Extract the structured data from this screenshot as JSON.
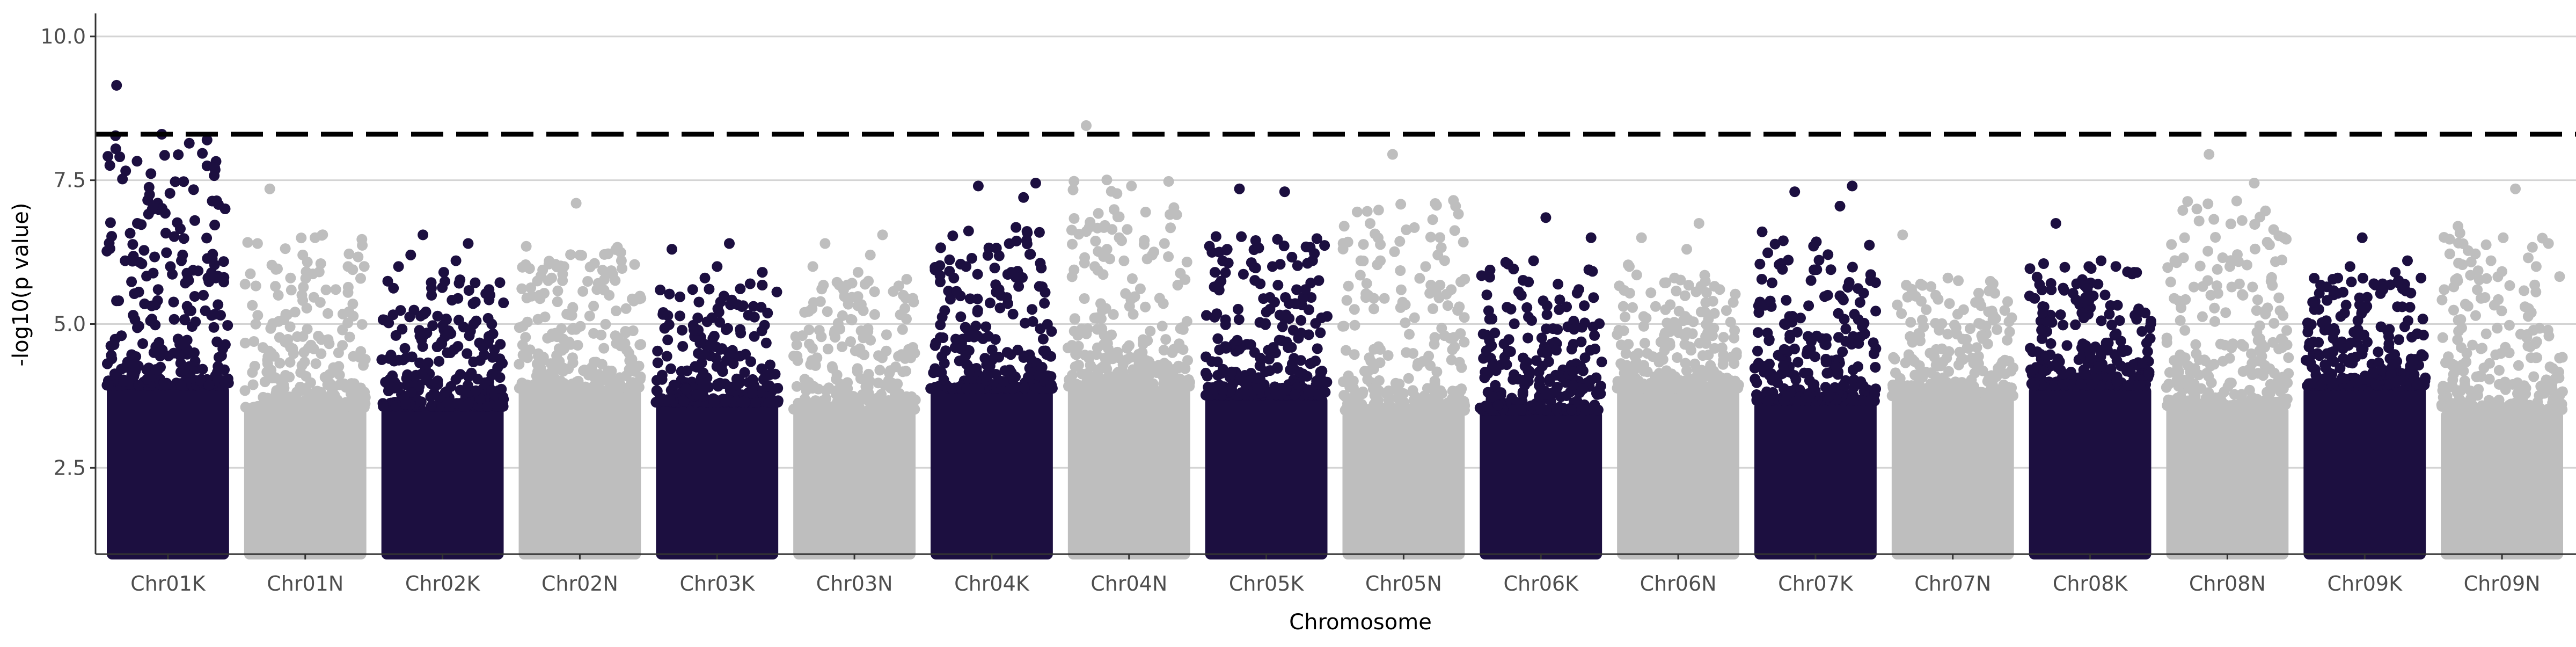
{
  "chart_data": {
    "type": "scatter",
    "subtype": "manhattan",
    "title": "",
    "xlabel": "Chromosome",
    "ylabel": "-log10(p value)",
    "ylim": [
      1,
      10.4
    ],
    "yticks": [
      2.5,
      5.0,
      7.5,
      10.0
    ],
    "ytick_labels": [
      "2.5",
      "5.0",
      "7.5",
      "10.0"
    ],
    "grid": "horizontal major",
    "legend": "none",
    "threshold": {
      "value": 8.3,
      "style": "dashed",
      "color": "#000000"
    },
    "palette": {
      "odd": "#1c0f40",
      "even": "#bebebe"
    },
    "categories": [
      "Chr01K",
      "Chr01N",
      "Chr02K",
      "Chr02N",
      "Chr03K",
      "Chr03N",
      "Chr04K",
      "Chr04N",
      "Chr05K",
      "Chr05N",
      "Chr06K",
      "Chr06N",
      "Chr07K",
      "Chr07N",
      "Chr08K",
      "Chr08N",
      "Chr09K",
      "Chr09N"
    ],
    "series": [
      {
        "chromosome": "Chr01K",
        "color": "#1c0f40",
        "max": 9.15,
        "peaks": [
          9.15,
          8.3,
          8.2,
          7.25,
          6.8,
          6.75,
          6.2,
          6.1,
          6.0,
          5.8,
          5.6,
          5.5
        ]
      },
      {
        "chromosome": "Chr01N",
        "color": "#bebebe",
        "max": 7.35,
        "peaks": [
          7.35,
          6.5,
          6.4,
          6.2,
          6.0,
          5.8,
          5.6,
          5.5
        ]
      },
      {
        "chromosome": "Chr02K",
        "color": "#1c0f40",
        "max": 6.55,
        "peaks": [
          6.55,
          6.4,
          6.2,
          6.1,
          6.0,
          5.9,
          5.6,
          5.5
        ]
      },
      {
        "chromosome": "Chr02N",
        "color": "#bebebe",
        "max": 7.1,
        "peaks": [
          7.1,
          6.1,
          6.0,
          5.9,
          5.8,
          5.6,
          5.5
        ]
      },
      {
        "chromosome": "Chr03K",
        "color": "#1c0f40",
        "max": 6.4,
        "peaks": [
          6.4,
          6.3,
          6.0,
          5.9,
          5.8,
          5.7,
          5.6
        ]
      },
      {
        "chromosome": "Chr03N",
        "color": "#bebebe",
        "max": 6.55,
        "peaks": [
          6.55,
          6.4,
          6.2,
          6.0,
          5.9,
          5.5
        ]
      },
      {
        "chromosome": "Chr04K",
        "color": "#1c0f40",
        "max": 7.45,
        "peaks": [
          7.45,
          7.4,
          7.2,
          6.0,
          5.9,
          5.8,
          5.6
        ]
      },
      {
        "chromosome": "Chr04N",
        "color": "#bebebe",
        "max": 8.45,
        "peaks": [
          8.45,
          7.4,
          6.9,
          6.5,
          6.4,
          6.3,
          6.2,
          6.0
        ]
      },
      {
        "chromosome": "Chr05K",
        "color": "#1c0f40",
        "max": 7.35,
        "peaks": [
          7.35,
          7.3,
          6.3,
          6.0,
          5.9,
          5.7,
          5.6
        ]
      },
      {
        "chromosome": "Chr05N",
        "color": "#bebebe",
        "max": 7.95,
        "peaks": [
          7.95,
          6.2,
          6.1,
          6.0,
          5.5
        ]
      },
      {
        "chromosome": "Chr06K",
        "color": "#1c0f40",
        "max": 6.85,
        "peaks": [
          6.85,
          6.5,
          6.1,
          5.6,
          5.5,
          5.3
        ]
      },
      {
        "chromosome": "Chr06N",
        "color": "#bebebe",
        "max": 6.75,
        "peaks": [
          6.75,
          6.5,
          6.3,
          6.0,
          5.8,
          5.6
        ]
      },
      {
        "chromosome": "Chr07K",
        "color": "#1c0f40",
        "max": 7.4,
        "peaks": [
          7.4,
          7.3,
          7.05,
          5.95,
          5.5,
          5.4
        ]
      },
      {
        "chromosome": "Chr07N",
        "color": "#bebebe",
        "max": 6.55,
        "peaks": [
          6.55,
          5.8,
          5.7,
          5.5
        ]
      },
      {
        "chromosome": "Chr08K",
        "color": "#1c0f40",
        "max": 6.75,
        "peaks": [
          6.75,
          6.1,
          6.05,
          6.0,
          5.9,
          5.7
        ]
      },
      {
        "chromosome": "Chr08N",
        "color": "#bebebe",
        "max": 7.95,
        "peaks": [
          7.95,
          7.45,
          7.0,
          6.8,
          6.5,
          6.0
        ]
      },
      {
        "chromosome": "Chr09K",
        "color": "#1c0f40",
        "max": 6.5,
        "peaks": [
          6.5,
          6.1,
          6.0,
          5.9,
          5.8,
          5.6
        ]
      },
      {
        "chromosome": "Chr09N",
        "color": "#bebebe",
        "max": 7.35,
        "peaks": [
          7.35,
          6.7,
          6.5,
          6.4,
          6.1,
          6.0
        ]
      }
    ]
  }
}
